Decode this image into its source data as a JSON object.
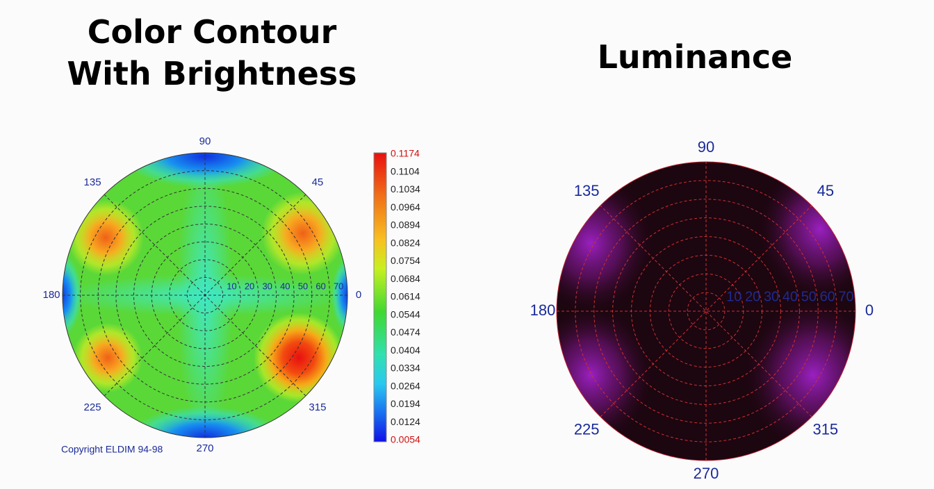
{
  "left": {
    "title": [
      "Color Contour",
      "With Brightness"
    ],
    "angles": [
      "0",
      "45",
      "90",
      "135",
      "180",
      "225",
      "270",
      "315"
    ],
    "radii": [
      "10",
      "20",
      "30",
      "40",
      "50",
      "60",
      "70"
    ],
    "scale": [
      "0.1174",
      "0.1104",
      "0.1034",
      "0.0964",
      "0.0894",
      "0.0824",
      "0.0754",
      "0.0684",
      "0.0614",
      "0.0544",
      "0.0474",
      "0.0404",
      "0.0334",
      "0.0264",
      "0.0194",
      "0.0124",
      "0.0054"
    ],
    "copyright": "Copyright ELDIM 94-98"
  },
  "right": {
    "title": "Luminance",
    "angles": [
      "0",
      "45",
      "90",
      "135",
      "180",
      "225",
      "270",
      "315"
    ],
    "radii": [
      "10",
      "20",
      "30",
      "40",
      "50",
      "60",
      "70"
    ]
  }
}
